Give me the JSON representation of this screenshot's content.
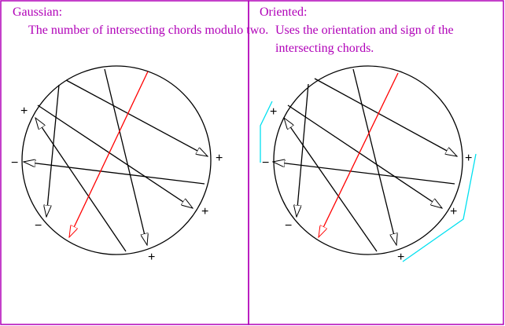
{
  "panels": {
    "left": {
      "title": "Gaussian:",
      "description": "The number of intersecting chords modulo two.",
      "signs": [
        "+",
        "−",
        "+",
        "+",
        "−",
        "+"
      ]
    },
    "right": {
      "title": "Oriented:",
      "description": "Uses the orientation and sign of the intersecting chords.",
      "signs": [
        "+",
        "−",
        "+",
        "+",
        "−",
        "+"
      ]
    }
  },
  "colors": {
    "frame": "#b000b8",
    "chord": "#000000",
    "highlight_chord": "#ff0000",
    "orientation_path": "#00e0f0"
  }
}
